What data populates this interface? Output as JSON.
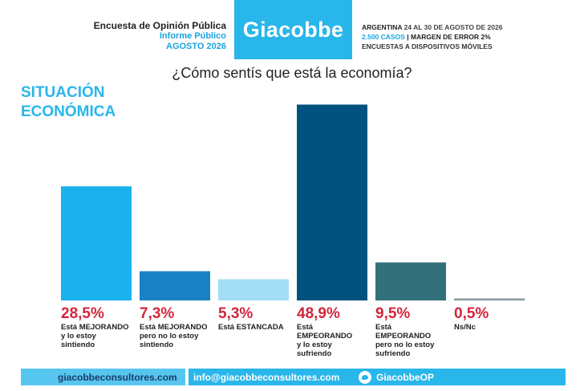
{
  "header": {
    "left_line1": "Encuesta de Opinión Pública",
    "left_line2": "Informe Público",
    "left_line3": "AGOSTO 2026",
    "brand": "Giacobbe",
    "right_country": "ARGENTINA",
    "right_dates": "24 AL 30 DE AGOSTO DE 2026",
    "right_cases": "2.500 CASOS",
    "right_margin": "| MARGEN DE ERROR 2%",
    "right_method": "ENCUESTAS A DISPOSITIVOS MÓVILES"
  },
  "section_title_1": "SITUACIÓN",
  "section_title_2": "ECONÓMICA",
  "footer": {
    "website": "giacobbeconsultores.com",
    "email": "info@giacobbeconsultores.com",
    "twitter": "GiacobbeOP",
    "twitter_icon": "twitter-bird-icon"
  },
  "chart_data": {
    "type": "bar",
    "title": "¿Cómo sentís que está la economía?",
    "ylim": [
      0,
      50
    ],
    "grid": false,
    "categories": [
      "Está MEJORANDO y lo estoy sintiendo",
      "Está MEJORANDO pero no lo estoy sintiendo",
      "Está ESTANCADA",
      "Está EMPEORANDO y lo estoy sufriendo",
      "Está EMPEORANDO pero no lo estoy sufriendo",
      "Ns/Nc"
    ],
    "values": [
      28.5,
      7.3,
      5.3,
      48.9,
      9.5,
      0.5
    ],
    "value_labels": [
      "28,5%",
      "7,3%",
      "5,3%",
      "48,9%",
      "9,5%",
      "0,5%"
    ],
    "category_lines": [
      [
        "Está MEJORANDO",
        "y lo estoy",
        "sintiendo"
      ],
      [
        "Está MEJORANDO",
        "pero no lo estoy",
        "sintiendo"
      ],
      [
        "Está ESTANCADA"
      ],
      [
        "Está",
        "EMPEORANDO",
        "y lo estoy",
        "sufriendo"
      ],
      [
        "Está",
        "EMPEORANDO",
        "pero no lo estoy",
        "sufriendo"
      ],
      [
        "Ns/Nc"
      ]
    ],
    "colors": [
      "#1ab1ec",
      "#1a82c4",
      "#a4ddf6",
      "#02527f",
      "#32707c",
      "#8a9a9f"
    ]
  }
}
